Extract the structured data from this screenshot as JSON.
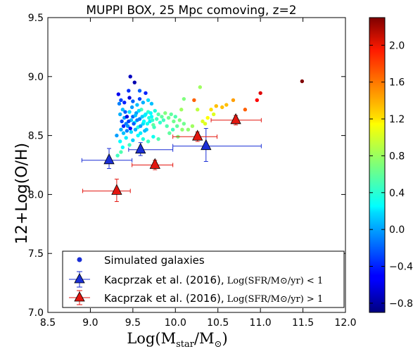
{
  "chart_data": {
    "type": "scatter",
    "title": "MUPPI BOX, 25 Mpc comoving, z=2",
    "xlabel": "Log(M_star/M_⊙)",
    "ylabel": "12+Log(O/H)",
    "xlim": [
      8.5,
      12.0
    ],
    "ylim": [
      7.0,
      9.5
    ],
    "x_ticks": [
      "8.5",
      "9.0",
      "9.5",
      "10.0",
      "10.5",
      "11.0",
      "11.5",
      "12.0"
    ],
    "y_ticks": [
      "7.0",
      "7.5",
      "8.0",
      "8.5",
      "9.0",
      "9.5"
    ],
    "grid": false,
    "legend_position": "lower-center",
    "colorbar": {
      "range": [
        -0.9,
        2.3
      ],
      "tick_labels": [
        "-0.8",
        "-0.4",
        "0.0",
        "0.4",
        "0.8",
        "1.2",
        "1.6",
        "2.0"
      ],
      "colormap": "jet"
    },
    "series": [
      {
        "name": "Simulated galaxies",
        "marker": "circle",
        "points": [
          [
            9.36,
            8.55,
            0.05
          ],
          [
            9.38,
            8.72,
            0.1
          ],
          [
            9.4,
            8.65,
            0.0
          ],
          [
            9.42,
            8.6,
            -0.1
          ],
          [
            9.35,
            8.68,
            0.05
          ],
          [
            9.44,
            8.58,
            -0.05
          ],
          [
            9.46,
            8.7,
            0.2
          ],
          [
            9.48,
            8.63,
            0.1
          ],
          [
            9.5,
            8.66,
            -0.2
          ],
          [
            9.52,
            8.61,
            0.3
          ],
          [
            9.54,
            8.69,
            0.0
          ],
          [
            9.56,
            8.57,
            0.4
          ],
          [
            9.58,
            8.64,
            -0.1
          ],
          [
            9.6,
            8.72,
            0.5
          ],
          [
            9.62,
            8.6,
            0.2
          ],
          [
            9.64,
            8.67,
            0.35
          ],
          [
            9.66,
            8.55,
            0.15
          ],
          [
            9.68,
            8.7,
            0.45
          ],
          [
            9.7,
            8.62,
            0.25
          ],
          [
            9.72,
            8.66,
            0.3
          ],
          [
            9.74,
            8.59,
            0.6
          ],
          [
            9.76,
            8.71,
            0.4
          ],
          [
            9.78,
            8.64,
            0.5
          ],
          [
            9.8,
            8.68,
            0.55
          ],
          [
            9.82,
            8.61,
            0.45
          ],
          [
            9.84,
            8.66,
            0.6
          ],
          [
            9.86,
            8.63,
            0.5
          ],
          [
            9.88,
            8.69,
            0.7
          ],
          [
            9.9,
            8.58,
            0.55
          ],
          [
            9.92,
            8.65,
            0.65
          ],
          [
            9.37,
            8.62,
            -0.3
          ],
          [
            9.39,
            8.58,
            -0.4
          ],
          [
            9.41,
            8.7,
            -0.2
          ],
          [
            9.43,
            8.66,
            -0.6
          ],
          [
            9.45,
            8.62,
            -0.3
          ],
          [
            9.47,
            8.56,
            -0.5
          ],
          [
            9.49,
            8.74,
            0.0
          ],
          [
            9.51,
            8.6,
            -0.2
          ],
          [
            9.53,
            8.67,
            0.1
          ],
          [
            9.55,
            8.63,
            -0.1
          ],
          [
            9.57,
            8.71,
            0.2
          ],
          [
            9.59,
            8.58,
            0.0
          ],
          [
            9.61,
            8.66,
            0.15
          ],
          [
            9.63,
            8.62,
            0.3
          ],
          [
            9.65,
            8.68,
            0.25
          ],
          [
            9.67,
            8.6,
            0.35
          ],
          [
            9.69,
            8.65,
            0.4
          ],
          [
            9.71,
            8.69,
            0.3
          ],
          [
            9.73,
            8.63,
            0.45
          ],
          [
            9.75,
            8.57,
            0.5
          ],
          [
            9.34,
            8.77,
            -0.1
          ],
          [
            9.36,
            8.8,
            -0.3
          ],
          [
            9.4,
            8.78,
            -0.4
          ],
          [
            9.46,
            8.82,
            -0.6
          ],
          [
            9.5,
            8.79,
            -0.2
          ],
          [
            9.55,
            8.76,
            0.1
          ],
          [
            9.58,
            8.81,
            -0.3
          ],
          [
            9.62,
            8.78,
            0.05
          ],
          [
            9.68,
            8.8,
            0.2
          ],
          [
            9.72,
            8.77,
            0.1
          ],
          [
            9.33,
            8.85,
            -0.55
          ],
          [
            9.45,
            8.88,
            -0.35
          ],
          [
            9.52,
            8.95,
            -0.75
          ],
          [
            9.58,
            8.88,
            -0.2
          ],
          [
            9.65,
            8.86,
            -0.4
          ],
          [
            9.35,
            8.45,
            0.3
          ],
          [
            9.42,
            8.48,
            0.25
          ],
          [
            9.5,
            8.46,
            0.15
          ],
          [
            9.56,
            8.5,
            0.3
          ],
          [
            9.62,
            8.47,
            0.4
          ],
          [
            9.68,
            8.45,
            0.5
          ],
          [
            9.74,
            8.49,
            0.35
          ],
          [
            9.8,
            8.47,
            0.55
          ],
          [
            9.38,
            8.4,
            0.3
          ],
          [
            9.46,
            8.42,
            0.5
          ],
          [
            9.32,
            8.33,
            0.5
          ],
          [
            9.36,
            8.36,
            0.55
          ],
          [
            9.47,
            9.0,
            -0.7
          ],
          [
            9.95,
            8.68,
            0.6
          ],
          [
            9.98,
            8.62,
            0.65
          ],
          [
            10.0,
            8.66,
            0.55
          ],
          [
            10.02,
            8.58,
            0.6
          ],
          [
            10.05,
            8.63,
            0.7
          ],
          [
            10.08,
            8.55,
            0.75
          ],
          [
            10.1,
            8.6,
            0.65
          ],
          [
            9.93,
            8.52,
            0.6
          ],
          [
            9.97,
            8.55,
            0.5
          ],
          [
            10.03,
            8.49,
            0.7
          ],
          [
            10.07,
            8.72,
            0.8
          ],
          [
            10.1,
            8.81,
            0.7
          ],
          [
            10.15,
            8.55,
            0.75
          ],
          [
            10.2,
            8.58,
            0.8
          ],
          [
            10.22,
            8.8,
            1.6
          ],
          [
            10.26,
            8.72,
            0.9
          ],
          [
            10.29,
            8.91,
            0.8
          ],
          [
            10.32,
            8.62,
            1.0
          ],
          [
            10.35,
            8.6,
            1.0
          ],
          [
            10.38,
            8.65,
            1.1
          ],
          [
            10.42,
            8.72,
            1.2
          ],
          [
            10.45,
            8.68,
            1.0
          ],
          [
            10.48,
            8.75,
            1.3
          ],
          [
            10.55,
            8.74,
            1.3
          ],
          [
            10.6,
            8.76,
            1.3
          ],
          [
            10.68,
            8.8,
            1.4
          ],
          [
            10.82,
            8.72,
            1.6
          ],
          [
            10.96,
            8.8,
            1.9
          ],
          [
            11.0,
            8.86,
            2.0
          ],
          [
            11.49,
            8.96,
            2.3
          ],
          [
            9.31,
            8.5,
            0.0
          ],
          [
            9.39,
            8.52,
            0.1
          ],
          [
            9.43,
            8.54,
            -0.1
          ],
          [
            9.48,
            8.53,
            0.2
          ],
          [
            9.53,
            8.55,
            0.05
          ],
          [
            9.59,
            8.52,
            0.25
          ],
          [
            9.64,
            8.54,
            0.1
          ]
        ]
      },
      {
        "name": "Kacprzak et al. (2016),",
        "label_math": "Log(SFR/M⊙/yr) < 1",
        "color": "#1a2fd6",
        "marker": "triangle",
        "points": [
          {
            "x": 9.22,
            "y": 8.29,
            "xlo": 8.9,
            "xhi": 9.49,
            "ylo": 8.22,
            "yhi": 8.39
          },
          {
            "x": 9.59,
            "y": 8.38,
            "xlo": 9.45,
            "xhi": 9.97,
            "ylo": 8.33,
            "yhi": 8.44
          },
          {
            "x": 10.36,
            "y": 8.41,
            "xlo": 9.97,
            "xhi": 11.01,
            "ylo": 8.28,
            "yhi": 8.56
          }
        ]
      },
      {
        "name": "Kacprzak et al. (2016),",
        "label_math": "Log(SFR/M⊙/yr) > 1",
        "color": "#e3160f",
        "marker": "triangle",
        "points": [
          {
            "x": 9.31,
            "y": 8.03,
            "xlo": 8.91,
            "xhi": 9.47,
            "ylo": 7.94,
            "yhi": 8.13
          },
          {
            "x": 9.76,
            "y": 8.25,
            "xlo": 9.49,
            "xhi": 9.97,
            "ylo": 8.21,
            "yhi": 8.29
          },
          {
            "x": 10.26,
            "y": 8.49,
            "xlo": 9.97,
            "xhi": 10.49,
            "ylo": 8.45,
            "yhi": 8.53
          },
          {
            "x": 10.71,
            "y": 8.63,
            "xlo": 10.42,
            "xhi": 11.01,
            "ylo": 8.59,
            "yhi": 8.67
          }
        ]
      }
    ]
  }
}
